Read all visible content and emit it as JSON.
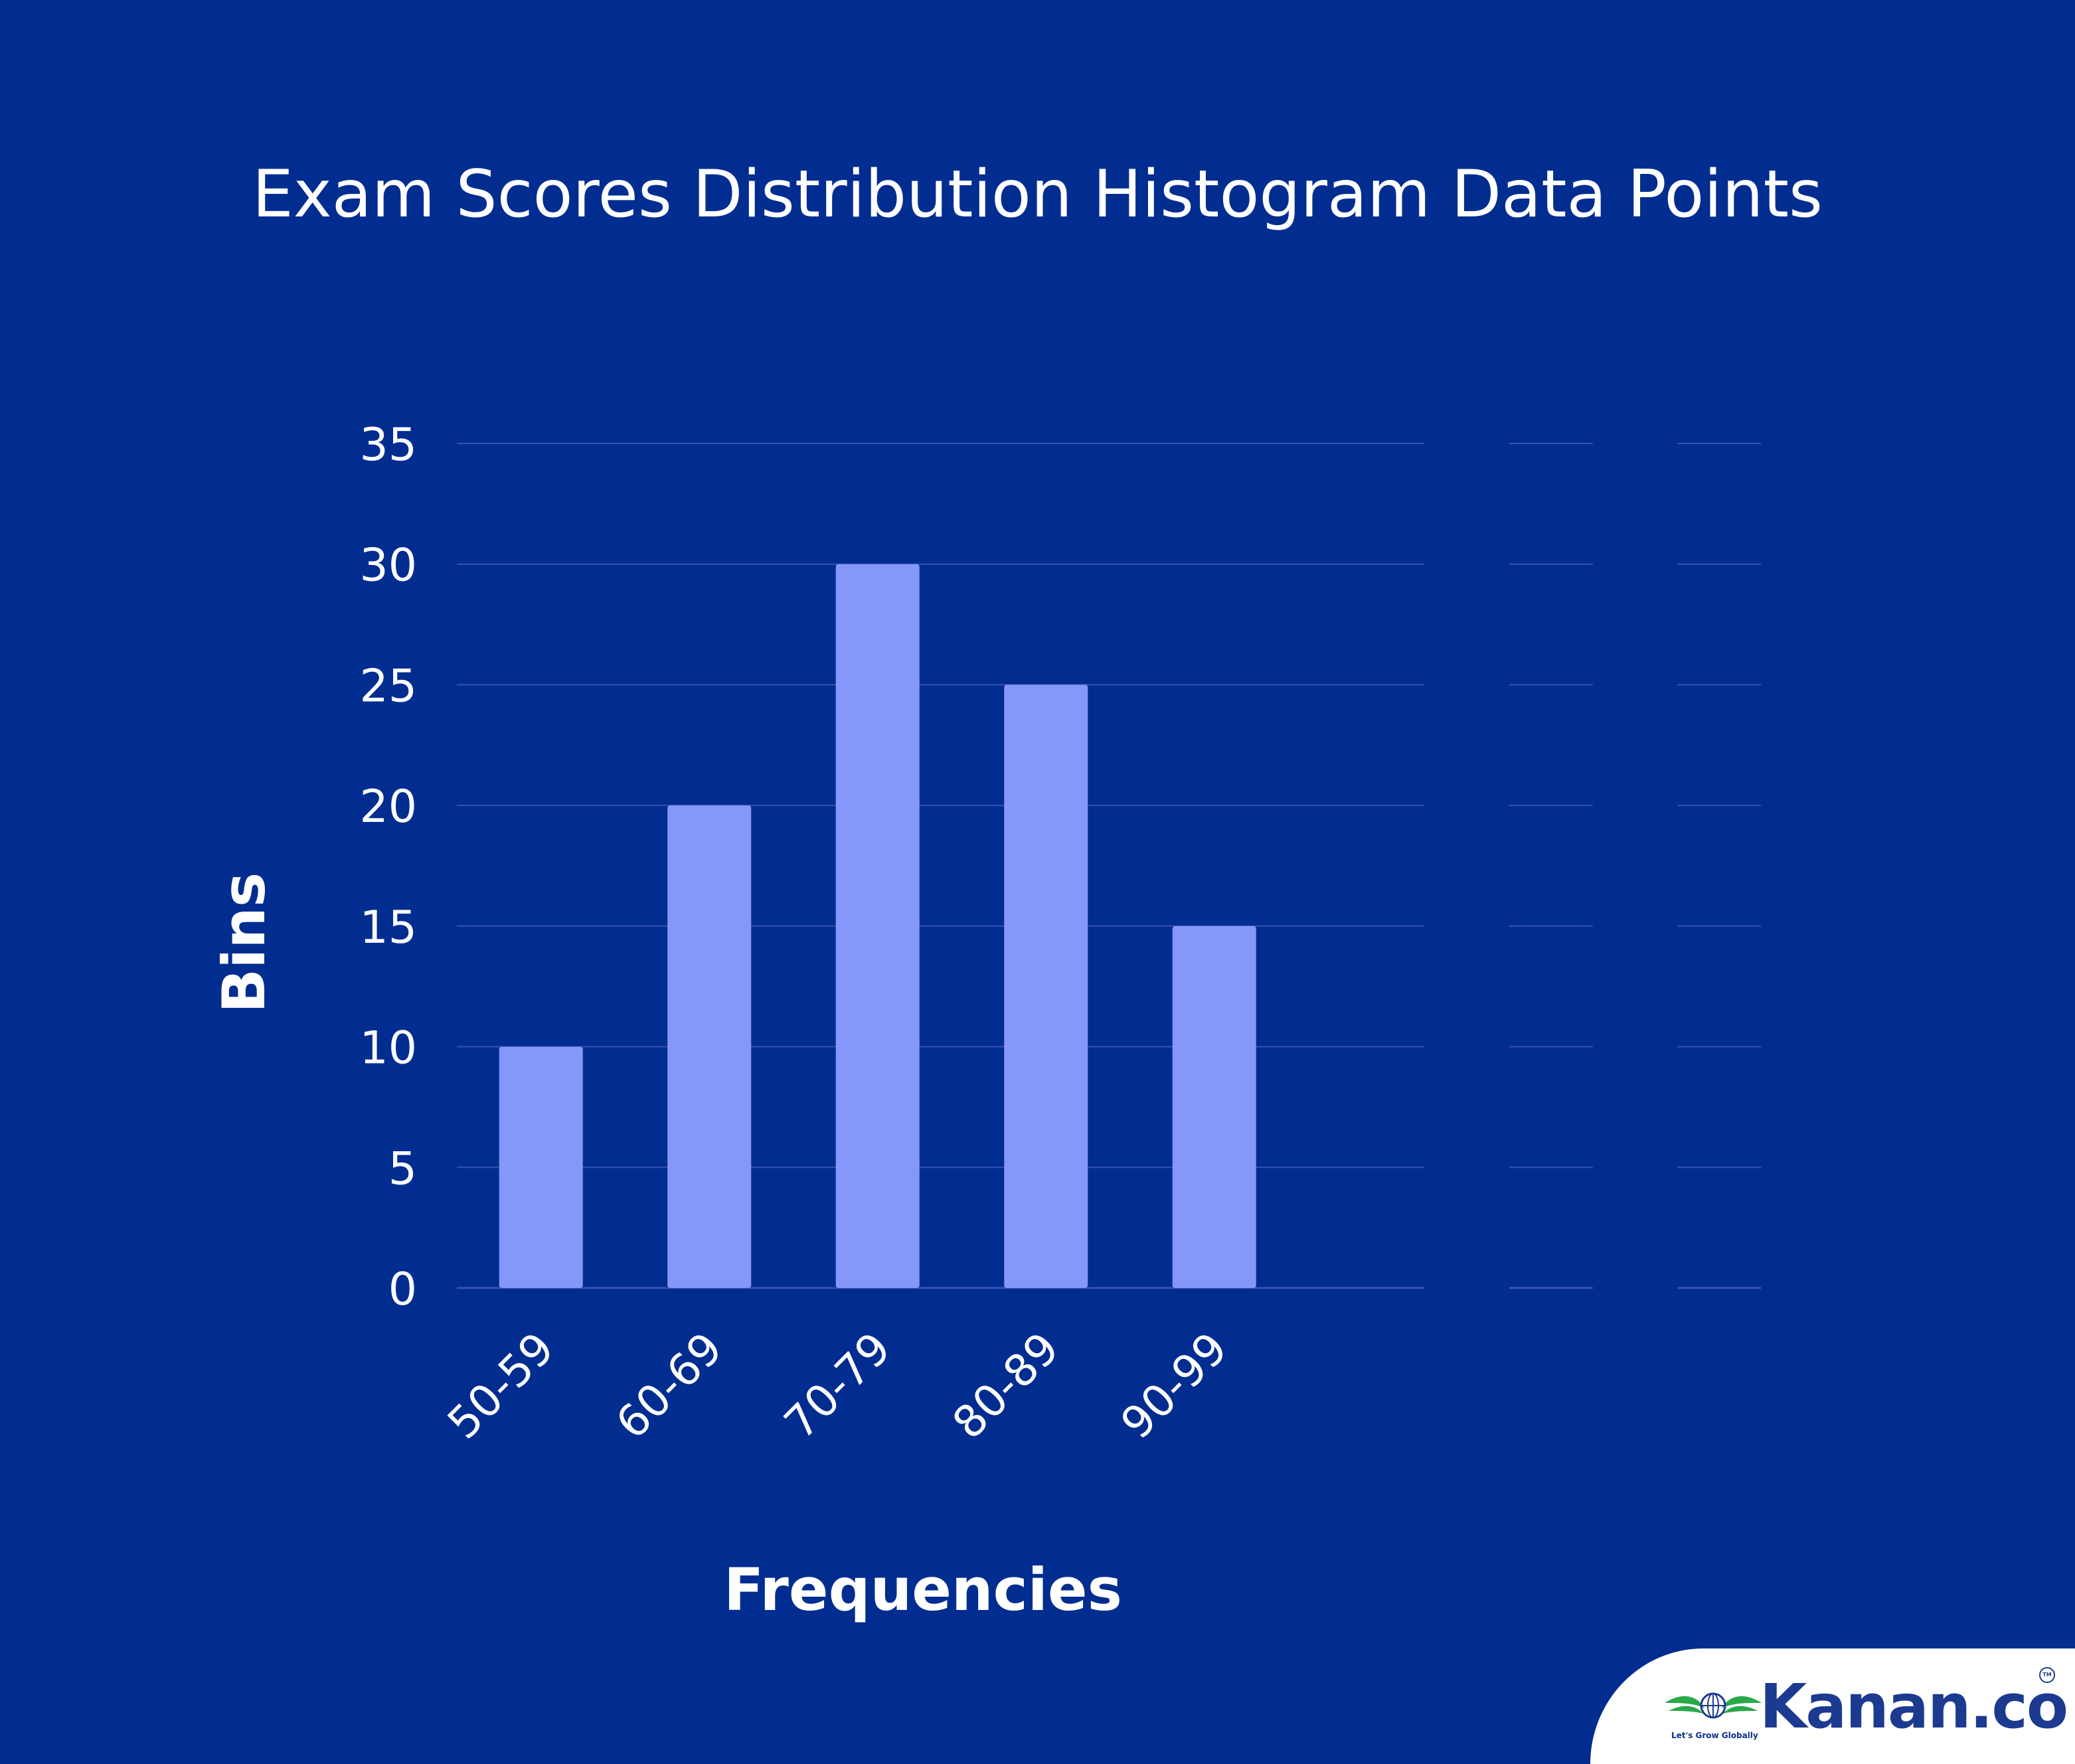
{
  "chart_data": {
    "type": "bar",
    "title": "Exam Scores Distribution Histogram Data Points",
    "xlabel": "Frequencies",
    "ylabel": "Bins",
    "categories": [
      "50-59",
      "60-69",
      "70-79",
      "80-89",
      "90-99",
      "",
      "",
      ""
    ],
    "values": [
      10,
      20,
      30,
      25,
      15,
      0,
      0,
      0
    ],
    "ylim": [
      0,
      35
    ],
    "yticks": [
      "0",
      "5",
      "10",
      "15",
      "20",
      "25",
      "30",
      "35"
    ],
    "grid": true,
    "legend": "none"
  },
  "colors": {
    "background": "#022d90",
    "bar": "#8597f8",
    "gridline": "#3552b0",
    "text": "#ffffff",
    "brand_blue": "#1c3a8f",
    "brand_green": "#2aa84a"
  },
  "brand": {
    "name": "Kanan.co",
    "tagline": "Let's Grow Globally",
    "tm": "TM",
    "icon": "globe-wings-logo-icon"
  }
}
